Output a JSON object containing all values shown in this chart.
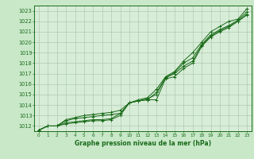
{
  "bg_color": "#c8e8c8",
  "plot_bg_color": "#d8edd8",
  "grid_color": "#b0c8b0",
  "line_color": "#1a6b1a",
  "marker": "+",
  "title": "Graphe pression niveau de la mer (hPa)",
  "xlim": [
    -0.5,
    23.5
  ],
  "ylim": [
    1011.5,
    1023.5
  ],
  "yticks": [
    1012,
    1013,
    1014,
    1015,
    1016,
    1017,
    1018,
    1019,
    1020,
    1021,
    1022,
    1023
  ],
  "xticks": [
    0,
    1,
    2,
    3,
    4,
    5,
    6,
    7,
    8,
    9,
    10,
    11,
    12,
    13,
    14,
    15,
    16,
    17,
    18,
    19,
    20,
    21,
    22,
    23
  ],
  "series": [
    [
      1011.6,
      1012.0,
      1012.0,
      1012.2,
      1012.3,
      1012.4,
      1012.5,
      1012.5,
      1012.6,
      1013.0,
      1014.2,
      1014.4,
      1014.5,
      1014.5,
      1016.5,
      1016.7,
      1017.5,
      1018.0,
      1019.6,
      1020.5,
      1021.0,
      1021.4,
      1022.0,
      1022.6
    ],
    [
      1011.6,
      1012.0,
      1012.0,
      1012.3,
      1012.4,
      1012.5,
      1012.6,
      1012.6,
      1012.7,
      1013.2,
      1014.2,
      1014.4,
      1014.6,
      1015.0,
      1016.6,
      1017.0,
      1017.7,
      1018.2,
      1019.7,
      1020.6,
      1021.1,
      1021.5,
      1022.0,
      1022.7
    ],
    [
      1011.6,
      1012.0,
      1012.0,
      1012.5,
      1012.7,
      1012.8,
      1012.9,
      1013.0,
      1013.1,
      1013.2,
      1014.2,
      1014.4,
      1014.5,
      1015.2,
      1016.6,
      1017.1,
      1018.0,
      1018.5,
      1019.8,
      1020.7,
      1021.2,
      1021.6,
      1022.1,
      1022.9
    ],
    [
      1011.6,
      1012.0,
      1012.0,
      1012.6,
      1012.8,
      1013.0,
      1013.1,
      1013.2,
      1013.3,
      1013.5,
      1014.2,
      1014.5,
      1014.7,
      1015.5,
      1016.7,
      1017.2,
      1018.2,
      1019.0,
      1020.0,
      1021.0,
      1021.5,
      1022.0,
      1022.2,
      1023.2
    ]
  ]
}
